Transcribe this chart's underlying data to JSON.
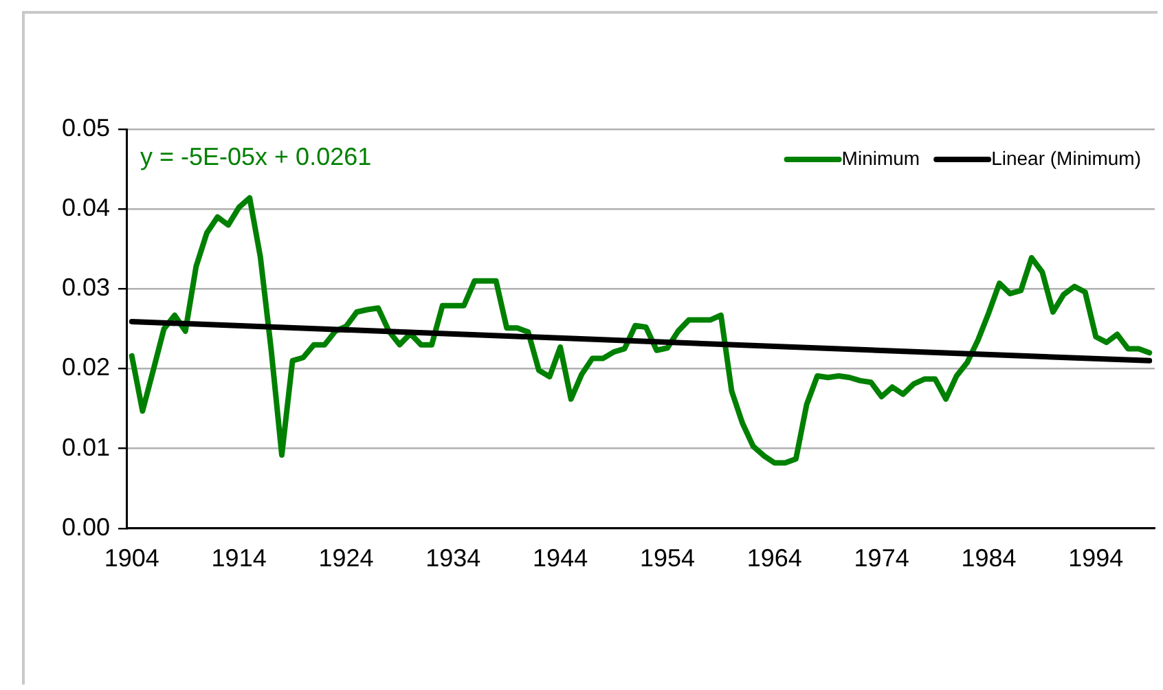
{
  "chart_data": {
    "type": "line",
    "x": [
      1904,
      1905,
      1906,
      1907,
      1908,
      1909,
      1910,
      1911,
      1912,
      1913,
      1914,
      1915,
      1916,
      1917,
      1918,
      1919,
      1920,
      1921,
      1922,
      1923,
      1924,
      1925,
      1926,
      1927,
      1928,
      1929,
      1930,
      1931,
      1932,
      1933,
      1934,
      1935,
      1936,
      1937,
      1938,
      1939,
      1940,
      1941,
      1942,
      1943,
      1944,
      1945,
      1946,
      1947,
      1948,
      1949,
      1950,
      1951,
      1952,
      1953,
      1954,
      1955,
      1956,
      1957,
      1958,
      1959,
      1960,
      1961,
      1962,
      1963,
      1964,
      1965,
      1966,
      1967,
      1968,
      1969,
      1970,
      1971,
      1972,
      1973,
      1974,
      1975,
      1976,
      1977,
      1978,
      1979,
      1980,
      1981,
      1982,
      1983,
      1984,
      1985,
      1986,
      1987,
      1988,
      1989,
      1990,
      1991,
      1992,
      1993,
      1994,
      1995,
      1996,
      1997,
      1998,
      1999
    ],
    "series": [
      {
        "name": "Minimum",
        "color": "#008000",
        "values": [
          0.0216,
          0.0147,
          0.0198,
          0.025,
          0.0267,
          0.0247,
          0.0328,
          0.037,
          0.039,
          0.038,
          0.0402,
          0.0414,
          0.034,
          0.0225,
          0.0092,
          0.021,
          0.0214,
          0.023,
          0.023,
          0.0247,
          0.0253,
          0.0271,
          0.0274,
          0.0276,
          0.0247,
          0.023,
          0.0244,
          0.023,
          0.023,
          0.0279,
          0.0279,
          0.0279,
          0.031,
          0.031,
          0.031,
          0.0251,
          0.0251,
          0.0246,
          0.0198,
          0.019,
          0.0227,
          0.0162,
          0.0193,
          0.0213,
          0.0213,
          0.0221,
          0.0225,
          0.0254,
          0.0252,
          0.0223,
          0.0226,
          0.0247,
          0.0261,
          0.0261,
          0.0261,
          0.0267,
          0.0172,
          0.0132,
          0.0103,
          0.0091,
          0.0082,
          0.0082,
          0.0087,
          0.0155,
          0.0191,
          0.0189,
          0.0191,
          0.0189,
          0.0185,
          0.0183,
          0.0165,
          0.0177,
          0.0168,
          0.0181,
          0.0187,
          0.0187,
          0.0162,
          0.0191,
          0.0208,
          0.0236,
          0.027,
          0.0307,
          0.0294,
          0.0298,
          0.0339,
          0.0321,
          0.0271,
          0.0293,
          0.0303,
          0.0296,
          0.024,
          0.0233,
          0.0243,
          0.0225,
          0.0225,
          0.022
        ]
      },
      {
        "name": "Linear (Minimum)",
        "color": "#000000",
        "type": "line",
        "x": [
          1904,
          1999
        ],
        "values": [
          0.0259,
          0.021
        ]
      }
    ],
    "xlim": [
      1903.5,
      1999.5
    ],
    "xticks": [
      1904,
      1914,
      1924,
      1934,
      1944,
      1954,
      1964,
      1974,
      1984,
      1994
    ],
    "ylim": [
      0,
      0.05
    ],
    "yticks": [
      {
        "value": 0,
        "label": "0.00"
      },
      {
        "value": 0.01,
        "label": "0.01"
      },
      {
        "value": 0.02,
        "label": "0.02"
      },
      {
        "value": 0.03,
        "label": "0.03"
      },
      {
        "value": 0.04,
        "label": "0.04"
      },
      {
        "value": 0.05,
        "label": "0.05"
      }
    ],
    "grid": "y",
    "legend": "top right",
    "marker": "none",
    "line_style": "solid",
    "annotations": [
      "y = -5E-05x + 0.0261"
    ]
  }
}
